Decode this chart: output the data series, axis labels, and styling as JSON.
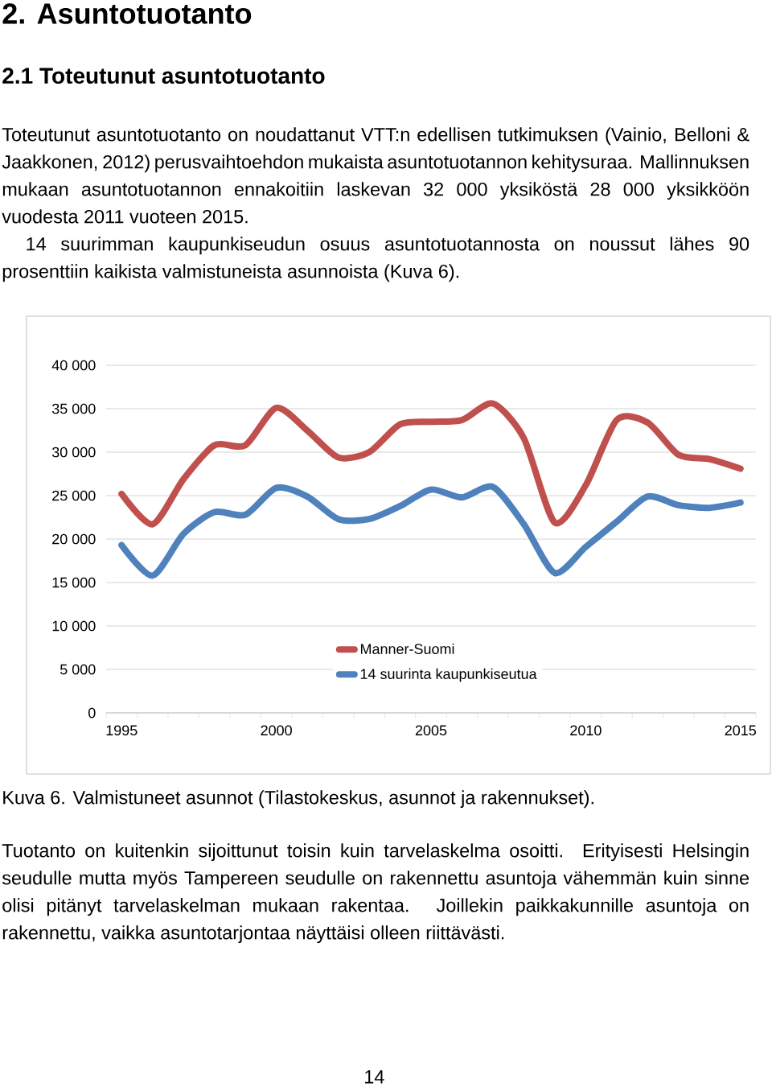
{
  "chart_data": {
    "type": "line",
    "annotations": [
      "2. Asuntotuotanto",
      "2.1 Toteutunut asuntotuotanto",
      "Toteutunut asuntotuotanto on noudattanut VTT:n edellisen tutkimuksen (Vainio, Belloni & Jaakkonen, 2012) perusvaihtoehdon mukaista asuntotuotannon kehitysuraa. Mallinnuksen mukaan asuntotuotannon ennakoitiin laskevan 32 000 yksiköstä 28 000 yksikköön vuodesta 2011 vuoteen 2015.",
      "14 suurimman kaupunkiseudun osuus asuntotuotannosta on noussut lähes 90 prosenttiin kaikista valmistuneista asunnoista (Kuva 6).",
      "Kuva 6. Valmistuneet asunnot (Tilastokeskus, asunnot ja rakennukset).",
      "Tuotanto on kuitenkin sijoittunut toisin kuin tarvelaskelma osoitti. Erityisesti Helsingin seudulle mutta myös Tampereen seudulle on rakennettu asuntoja vähemmän kuin sinne olisi pitänyt tarvelaskelman mukaan rakentaa. Joillekin paikkakunnille asuntoja on rakennettu, vaikka asuntotarjontaa näyttäisi olleen riittävästi.",
      "14"
    ],
    "x": [
      1995,
      1996,
      1997,
      1998,
      1999,
      2000,
      2001,
      2002,
      2003,
      2004,
      2005,
      2006,
      2007,
      2008,
      2009,
      2010,
      2011,
      2012,
      2013,
      2014,
      2015
    ],
    "series": [
      {
        "name": "Manner-Suomi",
        "color": "#c0504d",
        "values": [
          25200,
          21700,
          26900,
          30800,
          30800,
          35100,
          32500,
          29400,
          30000,
          33200,
          33500,
          33700,
          35600,
          31600,
          21900,
          26200,
          33700,
          33400,
          29700,
          29200,
          28100
        ]
      },
      {
        "name": "14 suurinta kaupunkiseutua",
        "color": "#4f81bd",
        "values": [
          19300,
          15800,
          20600,
          23100,
          22800,
          25900,
          24900,
          22300,
          22300,
          23800,
          25700,
          24800,
          26000,
          21700,
          16100,
          19100,
          22000,
          24900,
          23900,
          23600,
          24200
        ]
      }
    ],
    "xlim": [
      1994.5,
      2015.5
    ],
    "xticks": [
      {
        "value": 1994.5,
        "label": null
      },
      1995,
      {
        "value": 1995.5,
        "label": null
      },
      {
        "value": 1996.5,
        "label": null
      },
      {
        "value": 1997.5,
        "label": null
      },
      {
        "value": 1998.5,
        "label": null
      },
      {
        "value": 1999.5,
        "label": null
      },
      2000,
      {
        "value": 2000.5,
        "label": null
      },
      {
        "value": 2001.5,
        "label": null
      },
      {
        "value": 2002.5,
        "label": null
      },
      {
        "value": 2003.5,
        "label": null
      },
      {
        "value": 2004.5,
        "label": null
      },
      2005,
      {
        "value": 2005.5,
        "label": null
      },
      {
        "value": 2006.5,
        "label": null
      },
      {
        "value": 2007.5,
        "label": null
      },
      {
        "value": 2008.5,
        "label": null
      },
      {
        "value": 2009.5,
        "label": null
      },
      2010,
      {
        "value": 2010.5,
        "label": null
      },
      {
        "value": 2011.5,
        "label": null
      },
      {
        "value": 2012.5,
        "label": null
      },
      {
        "value": 2013.5,
        "label": null
      },
      {
        "value": 2014.5,
        "label": null
      },
      2015,
      {
        "value": 2015.5,
        "label": null
      }
    ],
    "ylim": [
      0,
      40000
    ],
    "yticks": [
      0,
      {
        "value": 5000,
        "label": "5 000"
      },
      {
        "value": 10000,
        "label": "10 000"
      },
      {
        "value": 15000,
        "label": "15 000"
      },
      {
        "value": 20000,
        "label": "20 000"
      },
      {
        "value": 25000,
        "label": "25 000"
      },
      {
        "value": 30000,
        "label": "30 000"
      },
      {
        "value": 35000,
        "label": "35 000"
      },
      {
        "value": 40000,
        "label": "40 000"
      }
    ],
    "grid": "y",
    "legend": "bottom"
  }
}
